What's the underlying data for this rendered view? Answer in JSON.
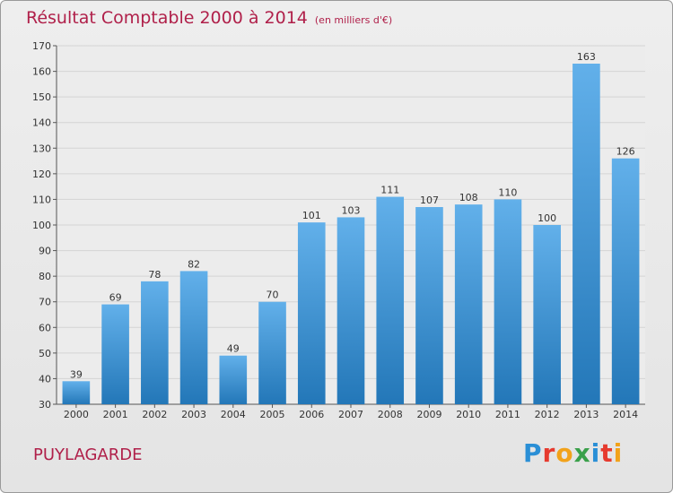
{
  "header": {
    "title": "Résultat Comptable 2000 à 2014",
    "units": "(en milliers d'€)"
  },
  "footer": {
    "commune": "PUYLAGARDE",
    "logo_text": "Proxiti",
    "logo_colors": [
      "#2a8fd6",
      "#e63a2e",
      "#f2a21a",
      "#3aa04a",
      "#2a8fd6",
      "#e63a2e",
      "#f2a21a"
    ]
  },
  "colors": {
    "bar_top": "#62b0ea",
    "bar_bottom": "#2377b8",
    "accent": "#b0204a",
    "grid": "#d4d4d4"
  },
  "chart_data": {
    "type": "bar",
    "categories": [
      "2000",
      "2001",
      "2002",
      "2003",
      "2004",
      "2005",
      "2006",
      "2007",
      "2008",
      "2009",
      "2010",
      "2011",
      "2012",
      "2013",
      "2014"
    ],
    "values": [
      39,
      69,
      78,
      82,
      49,
      70,
      101,
      103,
      111,
      107,
      108,
      110,
      100,
      163,
      126
    ],
    "title": "Résultat Comptable 2000 à 2014",
    "subtitle": "(en milliers d'€)",
    "xlabel": "",
    "ylabel": "",
    "ylim": [
      30,
      170
    ],
    "yticks": [
      30,
      40,
      50,
      60,
      70,
      80,
      90,
      100,
      110,
      120,
      130,
      140,
      150,
      160,
      170
    ],
    "grid": true,
    "data_labels": true
  }
}
